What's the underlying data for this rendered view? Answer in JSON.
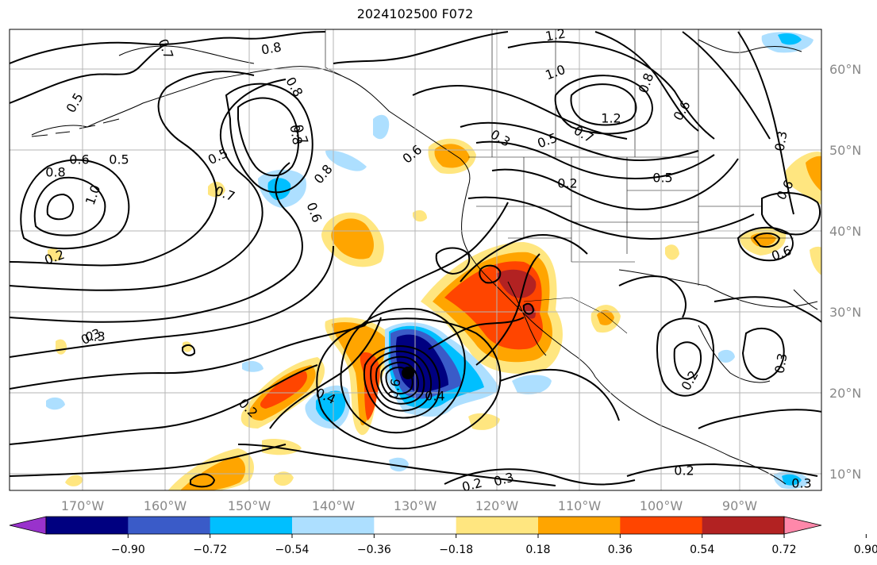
{
  "chart_data": {
    "type": "map",
    "title": "2024102500 F072",
    "lon_labels": [
      "170°W",
      "160°W",
      "150°W",
      "140°W",
      "130°W",
      "120°W",
      "110°W",
      "100°W",
      "90°W"
    ],
    "lat_labels": [
      "60°N",
      "50°N",
      "40°N",
      "30°N",
      "20°N",
      "10°N"
    ],
    "contour_labels": [
      "0.8",
      "0.7",
      "0.8",
      "0.5",
      "0.7",
      "0.8",
      "0.6",
      "0.5",
      "0.8",
      "0.8",
      "0.5",
      "0.6",
      "1.0",
      "0.7",
      "0.6",
      "0.3",
      "0.4",
      "0.2",
      "0.6",
      "0.4",
      "0.5",
      "0.7",
      "0.3",
      "1.2",
      "1.0",
      "0.8",
      "0.6",
      "1.2",
      "0.6",
      "0.3",
      "0.6",
      "0.5",
      "0.2",
      "0.3",
      "0.2",
      "0.2",
      "0.3",
      "0.2",
      "0.3",
      "0.3",
      "0.2"
    ],
    "colorbar": {
      "ticks": [
        "−0.90",
        "−0.72",
        "−0.54",
        "−0.36",
        "−0.18",
        "0.18",
        "0.36",
        "0.54",
        "0.72",
        "0.90"
      ],
      "colors": [
        "#9932CC",
        "#000080",
        "#3A5BC8",
        "#00BFFF",
        "#ADDFFF",
        "#FFFFFF",
        "#FFE680",
        "#FFA500",
        "#FF4500",
        "#B22222",
        "#FF88AA"
      ]
    },
    "lon_range": [
      -180,
      -80
    ],
    "lat_range": [
      8,
      65
    ]
  }
}
